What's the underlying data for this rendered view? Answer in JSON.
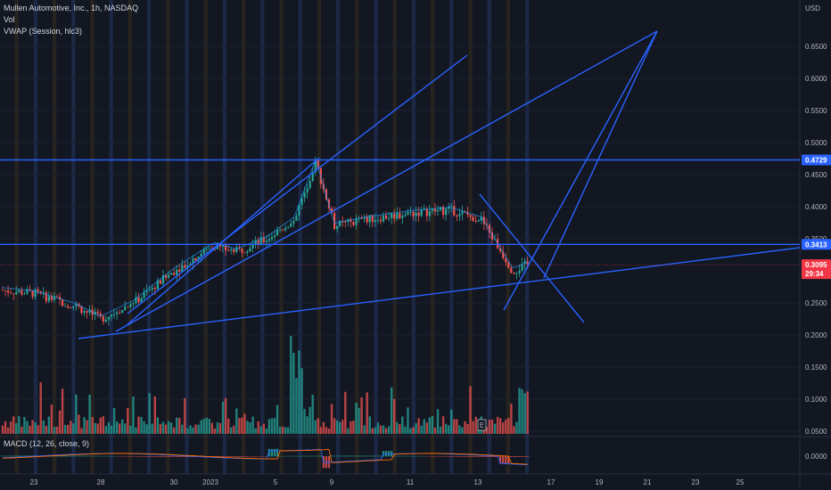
{
  "header": {
    "symbol": "Mullen Automotive, Inc., 1h, NASDAQ",
    "volume_label": "Vol",
    "vwap_label": "VWAP (Session, hlc3)",
    "macd_label": "MACD (12, 26, close, 9)"
  },
  "axis": {
    "currency": "USD",
    "price_ticks": [
      "0.6500",
      "0.6000",
      "0.5500",
      "0.5000",
      "0.4500",
      "0.4000",
      "0.3500",
      "0.2500",
      "0.2000",
      "0.1500",
      "0.1000",
      "0.0500"
    ],
    "macd_tick": "0.0000",
    "date_ticks": [
      "23",
      "28",
      "30",
      "2023",
      "5",
      "9",
      "11",
      "13",
      "17",
      "19",
      "21",
      "23",
      "25"
    ]
  },
  "tags": {
    "resistance_high": "0.4729",
    "resistance_low": "0.3413",
    "last_price": "0.3095",
    "countdown": "29:34"
  },
  "marker": "E",
  "colors": {
    "background": "#131722",
    "up": "#26a69a",
    "down": "#ef5350",
    "trendline": "#2962ff",
    "vwap": "#2196f3",
    "last_price": "#f23645",
    "macd_line": "#2962ff",
    "signal_line": "#ff6d00",
    "session_band": "#1d2a4a",
    "premarket_band": "#2a2620"
  },
  "chart_data": {
    "type": "candlestick",
    "interval": "1h",
    "ylim": [
      0.04,
      0.68
    ],
    "x_range": [
      "Dec 22",
      "Jan 26"
    ],
    "horizontal_levels": [
      0.4729,
      0.3413
    ],
    "last_price": 0.3095,
    "price_path": [
      [
        "Dec 22",
        0.27
      ],
      [
        "Dec 23",
        0.265
      ],
      [
        "Dec 27",
        0.245
      ],
      [
        "Dec 28",
        0.225
      ],
      [
        "Dec 29",
        0.25
      ],
      [
        "Dec 30",
        0.3
      ],
      [
        "Jan 2",
        0.34
      ],
      [
        "Jan 3",
        0.33
      ],
      [
        "Jan 4",
        0.35
      ],
      [
        "Jan 5",
        0.38
      ],
      [
        "Jan 6",
        0.44
      ],
      [
        "Jan 6 pm",
        0.47
      ],
      [
        "Jan 9",
        0.37
      ],
      [
        "Jan 10",
        0.38
      ],
      [
        "Jan 11",
        0.39
      ],
      [
        "Jan 12",
        0.395
      ],
      [
        "Jan 13",
        0.38
      ],
      [
        "Jan 16",
        0.3
      ],
      [
        "Jan 17",
        0.31
      ]
    ]
  }
}
